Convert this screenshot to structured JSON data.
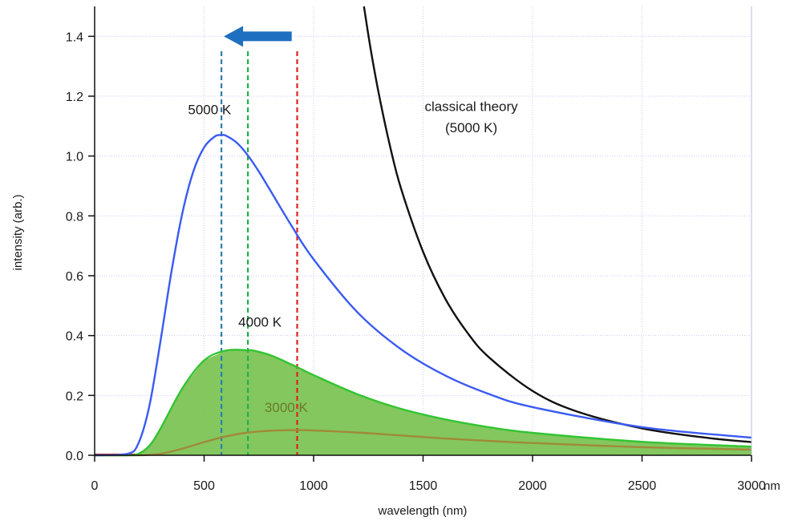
{
  "chart_data": {
    "type": "line",
    "xlabel": "wavelength (nm)",
    "ylabel": "intensity (arb.)",
    "x_unit": "nm",
    "xlim": [
      0,
      3000
    ],
    "ylim": [
      0,
      1.5
    ],
    "x_ticks": [
      0,
      500,
      1000,
      1500,
      2000,
      2500,
      3000
    ],
    "y_ticks": [
      0.0,
      0.2,
      0.4,
      0.6,
      0.8,
      1.0,
      1.2,
      1.4
    ],
    "x_tick_labels": [
      "0",
      "500",
      "1000",
      "1500",
      "2000",
      "2500",
      "3000"
    ],
    "y_tick_labels": [
      "0.0",
      "0.2",
      "0.4",
      "0.6",
      "0.8",
      "1.0",
      "1.2",
      "1.4"
    ],
    "grid": true,
    "series": [
      {
        "name": "5000 K",
        "color": "#3a5bf0",
        "x": [
          0,
          150,
          200,
          250,
          300,
          350,
          400,
          450,
          500,
          550,
          579,
          600,
          650,
          700,
          750,
          800,
          900,
          1000,
          1200,
          1400,
          1600,
          1800,
          2000,
          2500,
          3000
        ],
        "y": [
          0.0,
          0.005,
          0.04,
          0.165,
          0.378,
          0.61,
          0.807,
          0.947,
          1.029,
          1.066,
          1.07,
          1.068,
          1.044,
          1.002,
          0.948,
          0.888,
          0.766,
          0.655,
          0.478,
          0.354,
          0.267,
          0.205,
          0.161,
          0.094,
          0.059
        ]
      },
      {
        "name": "4000 K",
        "color": "#33c433",
        "fill": "#7cc455",
        "x": [
          0,
          150,
          200,
          250,
          300,
          400,
          500,
          600,
          700,
          724,
          800,
          900,
          1000,
          1200,
          1400,
          1600,
          1800,
          2000,
          2500,
          3000
        ],
        "y": [
          0.0,
          0.0003,
          0.005,
          0.032,
          0.088,
          0.223,
          0.317,
          0.35,
          0.351,
          0.35,
          0.335,
          0.303,
          0.268,
          0.204,
          0.155,
          0.12,
          0.094,
          0.075,
          0.045,
          0.029
        ]
      },
      {
        "name": "3000 K",
        "color": "#a08a3a",
        "x": [
          0,
          200,
          300,
          400,
          500,
          600,
          700,
          800,
          900,
          966,
          1000,
          1200,
          1400,
          1600,
          1800,
          2000,
          2500,
          3000
        ],
        "y": [
          0.0,
          0.0001,
          0.005,
          0.022,
          0.044,
          0.063,
          0.076,
          0.082,
          0.084,
          0.084,
          0.083,
          0.076,
          0.066,
          0.056,
          0.048,
          0.041,
          0.027,
          0.019
        ]
      },
      {
        "name": "classical theory (5000 K)",
        "color": "#111111",
        "x": [
          1230,
          1260,
          1300,
          1350,
          1400,
          1500,
          1600,
          1700,
          1800,
          2000,
          2200,
          2500,
          2800,
          3000
        ],
        "y": [
          1.5,
          1.36,
          1.2,
          1.03,
          0.89,
          0.68,
          0.525,
          0.412,
          0.328,
          0.215,
          0.147,
          0.09,
          0.058,
          0.044
        ]
      }
    ],
    "peak_markers": [
      {
        "x": 579,
        "color": "#2a7fb0",
        "y_top": 1.35
      },
      {
        "x": 700,
        "color": "#22b04a",
        "y_top": 1.35
      },
      {
        "x": 925,
        "color": "#e02020",
        "y_top": 1.35
      }
    ],
    "arrow": {
      "color": "#1f6fc0",
      "x_from": 900,
      "x_to": 590,
      "y": 1.4
    },
    "annotations": [
      {
        "id": "5000",
        "text": "5000 K",
        "x": 525,
        "y": 1.14,
        "anchor": "middle"
      },
      {
        "id": "4000",
        "text": "4000 K",
        "x": 755,
        "y": 0.43,
        "anchor": "middle"
      },
      {
        "id": "3000",
        "text": "3000 K",
        "x": 875,
        "y": 0.145,
        "anchor": "middle"
      },
      {
        "id": "classical-1",
        "text": "classical theory",
        "x": 1720,
        "y": 1.15,
        "anchor": "middle"
      },
      {
        "id": "classical-2",
        "text": "(5000 K)",
        "x": 1720,
        "y": 1.08,
        "anchor": "middle"
      }
    ]
  }
}
